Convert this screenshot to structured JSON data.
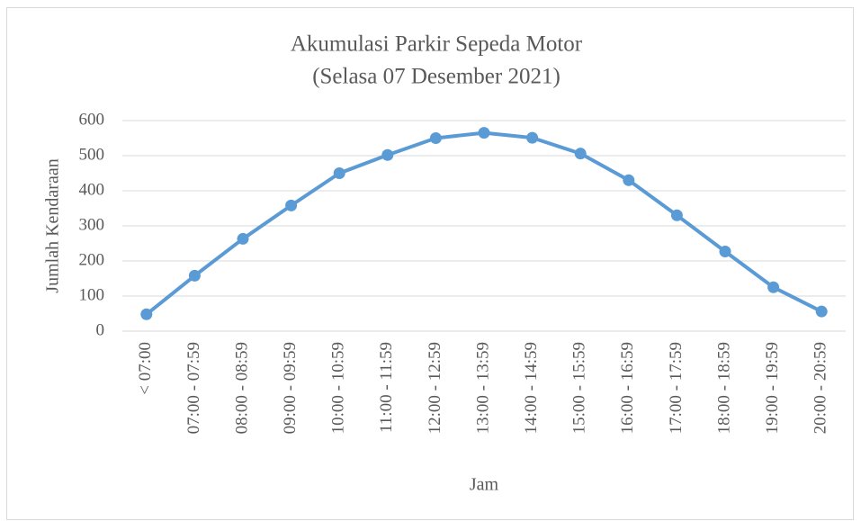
{
  "chart_data": {
    "type": "line",
    "title": "Akumulasi Parkir Sepeda Motor",
    "subtitle": "(Selasa 07 Desember 2021)",
    "x_label": "Jam",
    "y_label": "Jumlah Kendaraan",
    "categories": [
      "< 07:00",
      "07:00 - 07:59",
      "08:00 - 08:59",
      "09:00 - 09:59",
      "10:00 - 10:59",
      "11:00 - 11:59",
      "12:00 - 12:59",
      "13:00 - 13:59",
      "14:00 - 14:59",
      "15:00 - 15:59",
      "16:00 - 16:59",
      "17:00 - 17:59",
      "18:00 - 18:59",
      "19:00 - 19:59",
      "20:00 - 20:59"
    ],
    "series": [
      {
        "name": "Jumlah Kendaraan",
        "color": "#5b9bd5",
        "values": [
          48,
          158,
          263,
          358,
          450,
          502,
          550,
          565,
          551,
          506,
          430,
          330,
          227,
          125,
          56
        ]
      }
    ],
    "ylim": [
      0,
      600
    ],
    "yticks": [
      0,
      100,
      200,
      300,
      400,
      500,
      600
    ],
    "grid": true
  }
}
